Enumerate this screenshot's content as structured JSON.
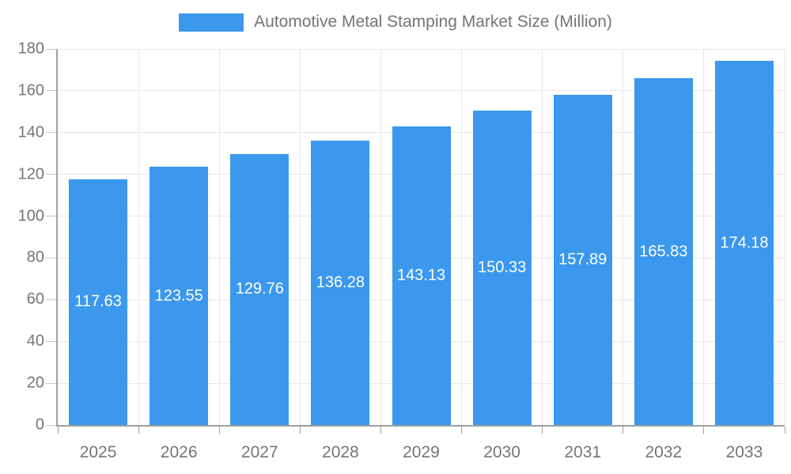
{
  "chart_data": {
    "type": "bar",
    "title": "Automotive Metal Stamping Market Size (Million)",
    "categories": [
      "2025",
      "2026",
      "2027",
      "2028",
      "2029",
      "2030",
      "2031",
      "2032",
      "2033"
    ],
    "values": [
      117.63,
      123.55,
      129.76,
      136.28,
      143.13,
      150.33,
      157.89,
      165.83,
      174.18
    ],
    "value_labels": [
      "117.63",
      "123.55",
      "129.76",
      "136.28",
      "143.13",
      "150.33",
      "157.89",
      "165.83",
      "174.18"
    ],
    "xlabel": "",
    "ylabel": "",
    "ylim": [
      0,
      180
    ],
    "yticks": [
      0,
      20,
      40,
      60,
      80,
      100,
      120,
      140,
      160,
      180
    ],
    "grid": true,
    "legend_position": "top",
    "value_label_position": "inside-center",
    "colors": {
      "bar": "#3b98ec",
      "axis": "#a0a0a0",
      "grid": "#e7e7e7",
      "tick": "#c8c8c8",
      "text": "#757575",
      "value_label": "#ffffff",
      "background": "#ffffff"
    }
  }
}
